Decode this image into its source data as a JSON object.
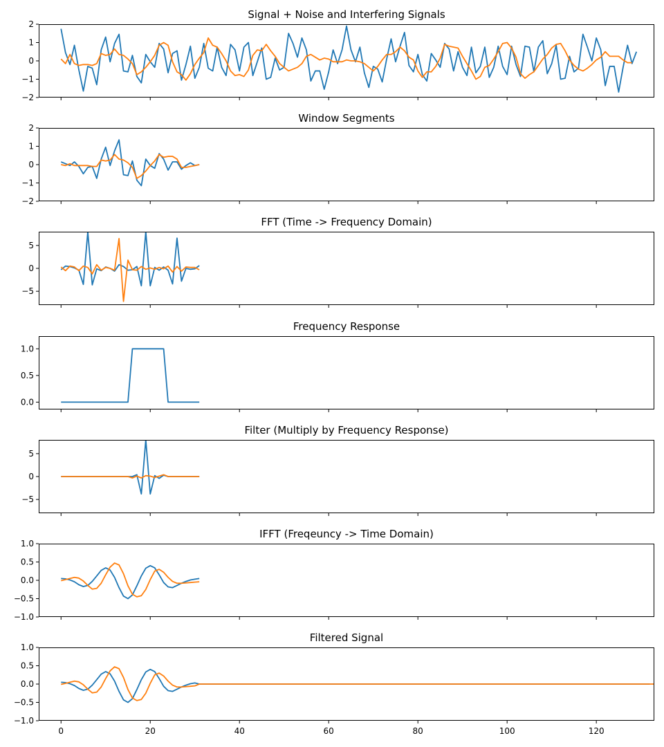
{
  "colors": {
    "blue": "#1f77b4",
    "orange": "#ff7f0e"
  },
  "chart_data": [
    {
      "type": "line",
      "title": "Signal + Noise and Interfering Signals",
      "xlim": [
        -5,
        133
      ],
      "ylim": [
        -2,
        2
      ],
      "yticks": [
        -2,
        -1,
        0,
        1,
        2
      ],
      "xticks": [
        0,
        20,
        40,
        60,
        80,
        100,
        120
      ],
      "series": [
        {
          "color": "#1f77b4",
          "x_start": 0,
          "values": [
            1.75,
            0.45,
            -0.2,
            0.85,
            -0.5,
            -1.65,
            -0.3,
            -0.4,
            -1.3,
            0.6,
            1.3,
            -0.05,
            0.95,
            1.45,
            -0.55,
            -0.6,
            0.3,
            -0.85,
            -1.2,
            0.35,
            -0.05,
            -0.35,
            0.95,
            0.65,
            -0.65,
            0.4,
            0.55,
            -1.05,
            -0.2,
            0.8,
            -0.95,
            -0.35,
            0.95,
            -0.4,
            -0.55,
            0.75,
            -0.35,
            -0.8,
            0.9,
            0.6,
            -0.55,
            0.75,
            1.0,
            -0.8,
            -0.05,
            0.7,
            -1.0,
            -0.9,
            0.15,
            -0.5,
            -0.35,
            1.5,
            0.95,
            0.2,
            1.25,
            0.6,
            -1.1,
            -0.55,
            -0.55,
            -1.55,
            -0.6,
            0.6,
            -0.15,
            0.6,
            1.9,
            0.6,
            -0.05,
            0.75,
            -0.65,
            -1.45,
            -0.3,
            -0.45,
            -1.15,
            0.1,
            1.2,
            -0.05,
            0.8,
            1.55,
            -0.25,
            -0.6,
            0.35,
            -0.75,
            -1.1,
            0.4,
            0.05,
            -0.35,
            0.95,
            0.65,
            -0.55,
            0.5,
            -0.35,
            -0.8,
            0.75,
            -0.65,
            -0.3,
            0.75,
            -0.9,
            -0.35,
            0.8,
            -0.3,
            -0.75,
            0.8,
            -0.2,
            -0.85,
            0.8,
            0.75,
            -0.6,
            0.75,
            1.1,
            -0.7,
            -0.15,
            0.85,
            -1.0,
            -0.95,
            0.25,
            -0.6,
            -0.4,
            1.45,
            0.75,
            0.0,
            1.25,
            0.6,
            -1.35,
            -0.3,
            -0.3,
            -1.7,
            -0.35,
            0.85,
            -0.15,
            0.5
          ]
        },
        {
          "color": "#ff7f0e",
          "x_start": 0,
          "values": [
            0.1,
            -0.15,
            0.35,
            -0.15,
            -0.25,
            -0.2,
            -0.2,
            -0.25,
            -0.15,
            0.4,
            0.3,
            0.35,
            0.65,
            0.35,
            0.3,
            0.1,
            -0.15,
            -0.75,
            -0.6,
            -0.35,
            -0.05,
            0.3,
            0.85,
            1.0,
            0.85,
            -0.05,
            -0.6,
            -0.75,
            -1.05,
            -0.7,
            -0.2,
            0.15,
            0.45,
            1.25,
            0.85,
            0.75,
            0.4,
            0.0,
            -0.55,
            -0.8,
            -0.75,
            -0.85,
            -0.5,
            0.3,
            0.6,
            0.55,
            0.9,
            0.55,
            0.25,
            -0.15,
            -0.35,
            -0.55,
            -0.45,
            -0.35,
            -0.15,
            0.25,
            0.35,
            0.2,
            0.05,
            0.15,
            0.1,
            -0.05,
            -0.05,
            -0.05,
            0.05,
            0.0,
            0.0,
            -0.05,
            -0.15,
            -0.35,
            -0.55,
            -0.3,
            0.05,
            0.35,
            0.35,
            0.5,
            0.75,
            0.55,
            0.2,
            0.05,
            -0.55,
            -0.9,
            -0.6,
            -0.6,
            -0.3,
            0.15,
            0.9,
            0.8,
            0.75,
            0.7,
            0.25,
            -0.15,
            -0.55,
            -1.0,
            -0.85,
            -0.35,
            -0.25,
            0.1,
            0.5,
            0.95,
            1.0,
            0.7,
            0.2,
            -0.7,
            -0.95,
            -0.75,
            -0.6,
            -0.25,
            0.1,
            0.35,
            0.7,
            0.9,
            0.95,
            0.55,
            0.05,
            -0.25,
            -0.45,
            -0.55,
            -0.4,
            -0.2,
            0.05,
            0.2,
            0.5,
            0.25,
            0.25,
            0.25,
            0.05,
            -0.1,
            -0.1
          ]
        }
      ]
    },
    {
      "type": "line",
      "title": "Window Segments",
      "xlim": [
        -5,
        133
      ],
      "ylim": [
        -2,
        2
      ],
      "yticks": [
        -2,
        -1,
        0,
        1,
        2
      ],
      "xticks": [
        0,
        20,
        40,
        60,
        80,
        100,
        120
      ],
      "series": [
        {
          "color": "#1f77b4",
          "x_start": 0,
          "values": [
            0.15,
            0.05,
            -0.05,
            0.15,
            -0.1,
            -0.5,
            -0.15,
            -0.1,
            -0.75,
            0.3,
            0.95,
            -0.05,
            0.75,
            1.35,
            -0.55,
            -0.6,
            0.2,
            -0.85,
            -1.15,
            0.3,
            -0.05,
            -0.2,
            0.6,
            0.3,
            -0.3,
            0.15,
            0.15,
            -0.25,
            -0.05,
            0.1,
            -0.05,
            0.0
          ]
        },
        {
          "color": "#ff7f0e",
          "x_start": 0,
          "values": [
            0.0,
            -0.05,
            0.05,
            -0.05,
            -0.05,
            -0.05,
            -0.05,
            -0.1,
            -0.1,
            0.25,
            0.2,
            0.25,
            0.55,
            0.3,
            0.25,
            0.1,
            -0.15,
            -0.75,
            -0.6,
            -0.35,
            -0.05,
            0.2,
            0.55,
            0.4,
            0.45,
            0.45,
            0.3,
            -0.15,
            -0.15,
            -0.1,
            -0.05,
            0.0
          ]
        }
      ]
    },
    {
      "type": "line",
      "title": "FFT (Time -> Frequency Domain)",
      "xlim": [
        -5,
        133
      ],
      "ylim": [
        -8,
        8
      ],
      "yticks": [
        -5,
        0,
        5
      ],
      "xticks": [
        0,
        20,
        40,
        60,
        80,
        100,
        120
      ],
      "series": [
        {
          "color": "#1f77b4",
          "x_start": 0,
          "values": [
            -0.3,
            0.5,
            0.4,
            0.1,
            -0.4,
            -3.5,
            8.0,
            -3.6,
            -0.1,
            -0.5,
            0.3,
            0.0,
            -0.6,
            0.8,
            0.4,
            -0.4,
            -0.3,
            0.4,
            -3.8,
            8.0,
            -3.8,
            0.2,
            -0.4,
            0.3,
            -0.4,
            -3.4,
            6.6,
            -2.8,
            0.0,
            -0.2,
            -0.1,
            0.6
          ]
        },
        {
          "color": "#ff7f0e",
          "x_start": 0,
          "values": [
            0.3,
            -0.5,
            0.5,
            0.3,
            -0.5,
            0.5,
            0.2,
            -1.2,
            0.8,
            -0.4,
            0.2,
            0.0,
            -0.4,
            6.5,
            -7.2,
            1.8,
            -0.3,
            -0.4,
            0.4,
            -0.2,
            0.1,
            -0.2,
            0.2,
            -0.1,
            0.5,
            -0.8,
            0.4,
            -0.6,
            0.3,
            0.2,
            0.2,
            -0.3
          ]
        }
      ]
    },
    {
      "type": "line",
      "title": "Frequency Response",
      "xlim": [
        -5,
        133
      ],
      "ylim": [
        -0.1375,
        1.2375
      ],
      "yticks": [
        0.0,
        0.5,
        1.0
      ],
      "ytick_labels": [
        "0.0",
        "0.5",
        "1.0"
      ],
      "xticks": [
        0,
        20,
        40,
        60,
        80,
        100,
        120
      ],
      "series": [
        {
          "color": "#1f77b4",
          "x_start": 0,
          "values": [
            0,
            0,
            0,
            0,
            0,
            0,
            0,
            0,
            0,
            0,
            0,
            0,
            0,
            0,
            0,
            0,
            1,
            1,
            1,
            1,
            1,
            1,
            1,
            1,
            0,
            0,
            0,
            0,
            0,
            0,
            0,
            0
          ]
        }
      ]
    },
    {
      "type": "line",
      "title": "Filter (Multiply by Frequency Response)",
      "xlim": [
        -5,
        133
      ],
      "ylim": [
        -8,
        8
      ],
      "yticks": [
        -5,
        0,
        5
      ],
      "xticks": [
        0,
        20,
        40,
        60,
        80,
        100,
        120
      ],
      "series": [
        {
          "color": "#1f77b4",
          "x_start": 0,
          "values": [
            0,
            0,
            0,
            0,
            0,
            0,
            0,
            0,
            0,
            0,
            0,
            0,
            0,
            0,
            0,
            0,
            0,
            0.4,
            -3.8,
            8.0,
            -3.8,
            0.2,
            -0.4,
            0.3,
            0,
            0,
            0,
            0,
            0,
            0,
            0,
            0
          ]
        },
        {
          "color": "#ff7f0e",
          "x_start": 0,
          "values": [
            0,
            0,
            0,
            0,
            0,
            0,
            0,
            0,
            0,
            0,
            0,
            0,
            0,
            0,
            0,
            0,
            -0.3,
            0.1,
            -0.3,
            0.2,
            0.1,
            -0.2,
            0.1,
            0.4,
            0,
            0,
            0,
            0,
            0,
            0,
            0,
            0
          ]
        }
      ]
    },
    {
      "type": "line",
      "title": "IFFT (Freqeuncy -> Time Domain)",
      "xlim": [
        -5,
        133
      ],
      "ylim": [
        -1,
        1
      ],
      "yticks": [
        -1.0,
        -0.5,
        0.0,
        0.5,
        1.0
      ],
      "ytick_labels": [
        "−1.0",
        "−0.5",
        "0.0",
        "0.5",
        "1.0"
      ],
      "xticks": [
        0,
        20,
        40,
        60,
        80,
        100,
        120
      ],
      "series": [
        {
          "color": "#1f77b4",
          "x_start": 0,
          "values": [
            0.05,
            0.04,
            0.01,
            -0.04,
            -0.12,
            -0.17,
            -0.14,
            -0.03,
            0.12,
            0.27,
            0.34,
            0.28,
            0.08,
            -0.2,
            -0.43,
            -0.5,
            -0.4,
            -0.15,
            0.12,
            0.33,
            0.4,
            0.34,
            0.15,
            -0.06,
            -0.18,
            -0.2,
            -0.14,
            -0.08,
            -0.03,
            0.01,
            0.03,
            0.05
          ]
        },
        {
          "color": "#ff7f0e",
          "x_start": 0,
          "values": [
            -0.01,
            0.02,
            0.05,
            0.08,
            0.06,
            -0.02,
            -0.14,
            -0.24,
            -0.22,
            -0.08,
            0.15,
            0.36,
            0.47,
            0.42,
            0.18,
            -0.15,
            -0.38,
            -0.45,
            -0.42,
            -0.25,
            0.02,
            0.25,
            0.3,
            0.22,
            0.08,
            -0.03,
            -0.08,
            -0.08,
            -0.07,
            -0.06,
            -0.05,
            -0.04
          ]
        }
      ]
    },
    {
      "type": "line",
      "title": "Filtered Signal",
      "xlim": [
        -5,
        133
      ],
      "ylim": [
        -1,
        1
      ],
      "yticks": [
        -1.0,
        -0.5,
        0.0,
        0.5,
        1.0
      ],
      "ytick_labels": [
        "−1.0",
        "−0.5",
        "0.0",
        "0.5",
        "1.0"
      ],
      "xticks": [
        0,
        20,
        40,
        60,
        80,
        100,
        120
      ],
      "xtick_labels": [
        "0",
        "20",
        "40",
        "60",
        "80",
        "100",
        "120"
      ],
      "series": [
        {
          "color": "#1f77b4",
          "x_start": 0,
          "values": [
            0.05,
            0.04,
            0.01,
            -0.04,
            -0.12,
            -0.17,
            -0.14,
            -0.03,
            0.12,
            0.27,
            0.34,
            0.28,
            0.08,
            -0.2,
            -0.43,
            -0.5,
            -0.4,
            -0.15,
            0.12,
            0.33,
            0.4,
            0.34,
            0.15,
            -0.06,
            -0.18,
            -0.2,
            -0.14,
            -0.08,
            -0.03,
            0.01,
            0.03,
            0.0,
            0.0,
            0.0,
            0.0,
            0.0,
            0.0,
            0.0,
            0.0,
            0.0,
            0.0,
            0.0,
            0.0,
            0.0,
            0.0,
            0.0,
            0.0,
            0.0,
            0.0,
            0.0,
            0.0,
            0.0,
            0.0,
            0.0,
            0.0,
            0.0,
            0.0,
            0.0,
            0.0,
            0.0,
            0.0,
            0.0,
            0.0,
            0.0,
            0.0,
            0.0,
            0.0,
            0.0,
            0.0,
            0.0,
            0.0,
            0.0,
            0.0,
            0.0,
            0.0,
            0.0,
            0.0,
            0.0,
            0.0,
            0.0,
            0.0,
            0.0,
            0.0,
            0.0,
            0.0,
            0.0,
            0.0,
            0.0,
            0.0,
            0.0,
            0.0,
            0.0,
            0.0,
            0.0,
            0.0,
            0.0,
            0.0,
            0.0,
            0.0,
            0.0,
            0.0,
            0.0,
            0.0,
            0.0,
            0.0,
            0.0,
            0.0,
            0.0,
            0.0,
            0.0,
            0.0,
            0.0,
            0.0,
            0.0,
            0.0,
            0.0,
            0.0,
            0.0,
            0.0,
            0.0,
            0.0,
            0.0,
            0.0,
            0.0,
            0.0,
            0.0,
            0.0,
            0.0,
            0.0,
            0.0,
            0.0,
            0.0,
            0.0
          ]
        },
        {
          "color": "#ff7f0e",
          "x_start": 0,
          "values": [
            -0.01,
            0.02,
            0.05,
            0.08,
            0.06,
            -0.02,
            -0.14,
            -0.24,
            -0.22,
            -0.08,
            0.15,
            0.36,
            0.47,
            0.42,
            0.18,
            -0.15,
            -0.38,
            -0.45,
            -0.42,
            -0.25,
            0.02,
            0.25,
            0.3,
            0.22,
            0.08,
            -0.03,
            -0.08,
            -0.08,
            -0.07,
            -0.06,
            -0.05,
            0.0,
            0.0,
            0.0,
            0.0,
            0.0,
            0.0,
            0.0,
            0.0,
            0.0,
            0.0,
            0.0,
            0.0,
            0.0,
            0.0,
            0.0,
            0.0,
            0.0,
            0.0,
            0.0,
            0.0,
            0.0,
            0.0,
            0.0,
            0.0,
            0.0,
            0.0,
            0.0,
            0.0,
            0.0,
            0.0,
            0.0,
            0.0,
            0.0,
            0.0,
            0.0,
            0.0,
            0.0,
            0.0,
            0.0,
            0.0,
            0.0,
            0.0,
            0.0,
            0.0,
            0.0,
            0.0,
            0.0,
            0.0,
            0.0,
            0.0,
            0.0,
            0.0,
            0.0,
            0.0,
            0.0,
            0.0,
            0.0,
            0.0,
            0.0,
            0.0,
            0.0,
            0.0,
            0.0,
            0.0,
            0.0,
            0.0,
            0.0,
            0.0,
            0.0,
            0.0,
            0.0,
            0.0,
            0.0,
            0.0,
            0.0,
            0.0,
            0.0,
            0.0,
            0.0,
            0.0,
            0.0,
            0.0,
            0.0,
            0.0,
            0.0,
            0.0,
            0.0,
            0.0,
            0.0,
            0.0,
            0.0,
            0.0,
            0.0,
            0.0,
            0.0,
            0.0,
            0.0,
            0.0,
            0.0,
            0.0,
            0.0,
            0.0,
            0.0
          ]
        }
      ]
    }
  ]
}
